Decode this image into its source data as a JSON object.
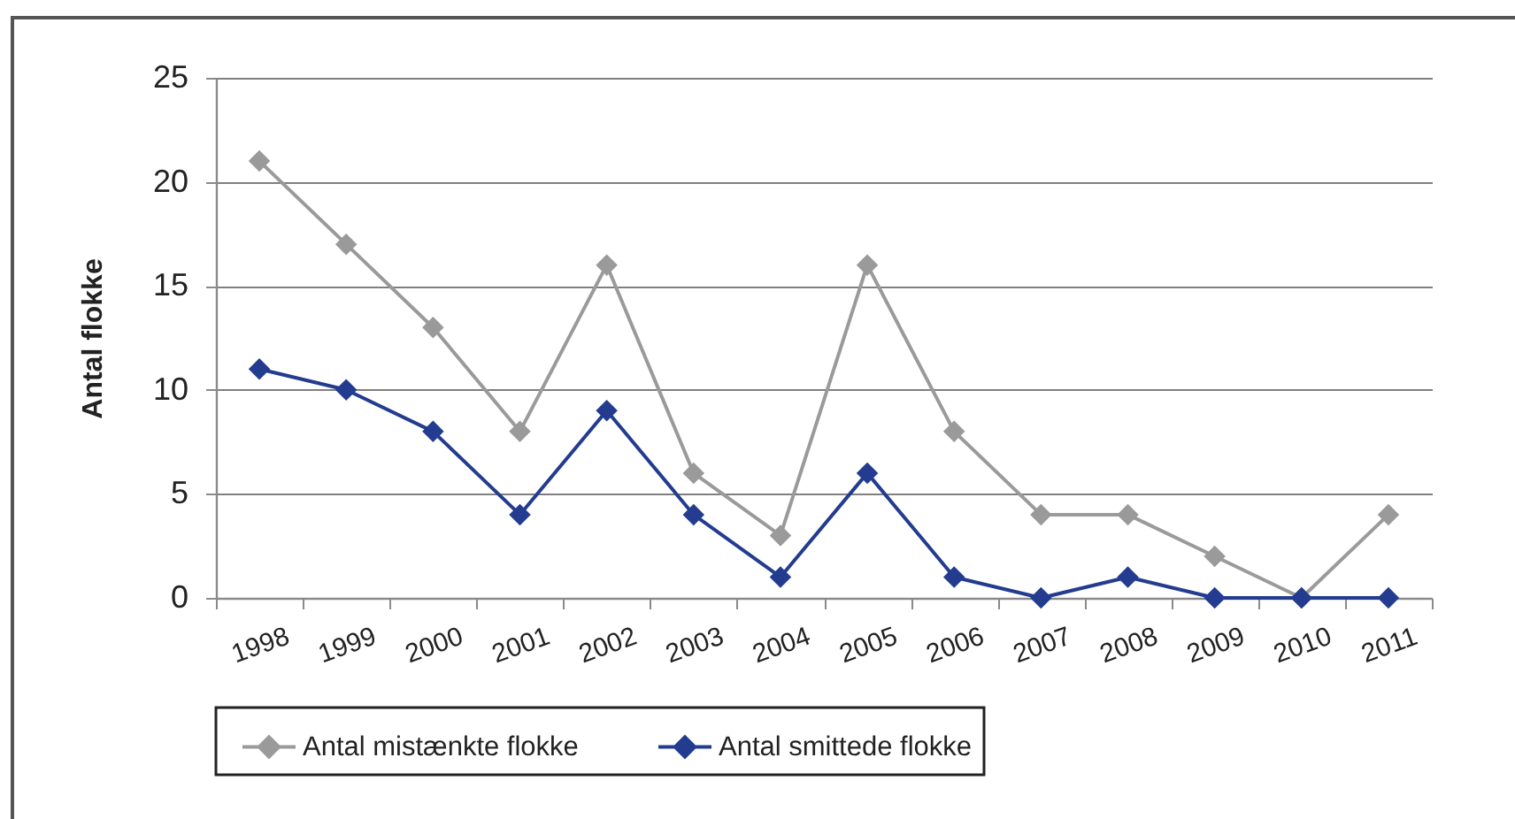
{
  "chart_data": {
    "type": "line",
    "ylabel": "Antal flokke",
    "categories": [
      "1998",
      "1999",
      "2000",
      "2001",
      "2002",
      "2003",
      "2004",
      "2005",
      "2006",
      "2007",
      "2008",
      "2009",
      "2010",
      "2011"
    ],
    "series": [
      {
        "name": "Antal mistænkte flokke",
        "color": "#9a9a9a",
        "values": [
          21,
          17,
          13,
          8,
          16,
          6,
          3,
          16,
          8,
          4,
          4,
          2,
          0,
          4
        ]
      },
      {
        "name": "Antal smittede flokke",
        "color": "#233c8f",
        "values": [
          11,
          10,
          8,
          4,
          9,
          4,
          1,
          6,
          1,
          0,
          1,
          0,
          0,
          0
        ]
      }
    ],
    "ylim": [
      0,
      25
    ],
    "yticks": [
      0,
      5,
      10,
      15,
      20,
      25
    ],
    "grid": "y",
    "legend": "bottom",
    "marker": "diamond",
    "line_style": "solid"
  }
}
